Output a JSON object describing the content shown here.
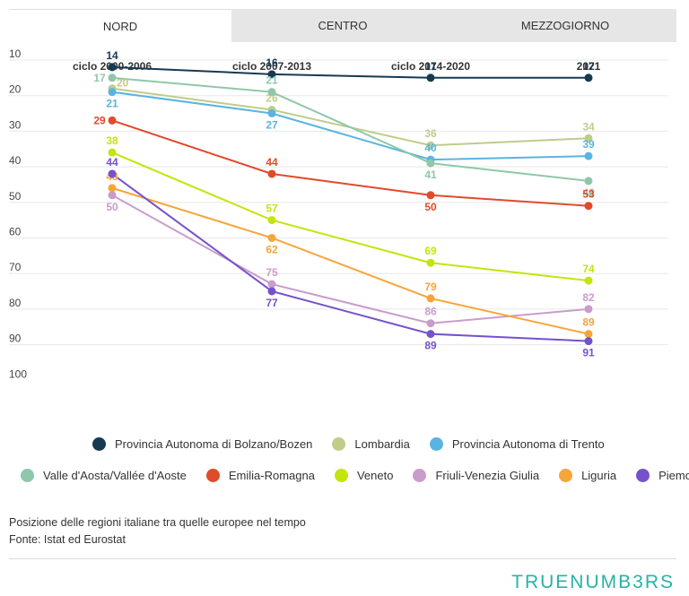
{
  "tabs": [
    {
      "label": "NORD",
      "active": true
    },
    {
      "label": "CENTRO",
      "active": false
    },
    {
      "label": "MEZZOGIORNO",
      "active": false
    }
  ],
  "chart_data": {
    "type": "line",
    "categories": [
      "ciclo 2000-2006",
      "ciclo 2007-2013",
      "ciclo 2014-2020",
      "2021"
    ],
    "yticks": [
      10,
      20,
      30,
      40,
      50,
      60,
      70,
      80,
      90,
      100
    ],
    "ylim": [
      10,
      100
    ],
    "y_reversed": true,
    "grid": true,
    "legend_position": "bottom",
    "series": [
      {
        "name": "Provincia Autonoma di Bolzano/Bozen",
        "color": "#163a52",
        "values": [
          14,
          16,
          17,
          17
        ]
      },
      {
        "name": "Lombardia",
        "color": "#bfcc8a",
        "values": [
          20,
          26,
          36,
          34
        ]
      },
      {
        "name": "Provincia Autonoma di Trento",
        "color": "#5ab4e1",
        "values": [
          21,
          27,
          40,
          39
        ]
      },
      {
        "name": "Valle d'Aosta/Vallée d'Aoste",
        "color": "#8ec7a9",
        "values": [
          17,
          21,
          41,
          46
        ]
      },
      {
        "name": "Emilia-Romagna",
        "color": "#e04b2a",
        "values": [
          29,
          44,
          50,
          53
        ]
      },
      {
        "name": "Veneto",
        "color": "#c5e40d",
        "values": [
          38,
          57,
          69,
          74
        ]
      },
      {
        "name": "Friuli-Venezia Giulia",
        "color": "#c99ccb",
        "values": [
          50,
          75,
          86,
          82
        ]
      },
      {
        "name": "Liguria",
        "color": "#f7a53a",
        "values": [
          48,
          62,
          79,
          89
        ]
      },
      {
        "name": "Piemonte",
        "color": "#7551cc",
        "values": [
          44,
          77,
          89,
          91
        ]
      }
    ]
  },
  "caption": {
    "line1": "Posizione delle regioni italiane tra quelle europee nel tempo",
    "line2": "Fonte: Istat ed Eurostat"
  },
  "logo": "TRUENUMB3RS"
}
